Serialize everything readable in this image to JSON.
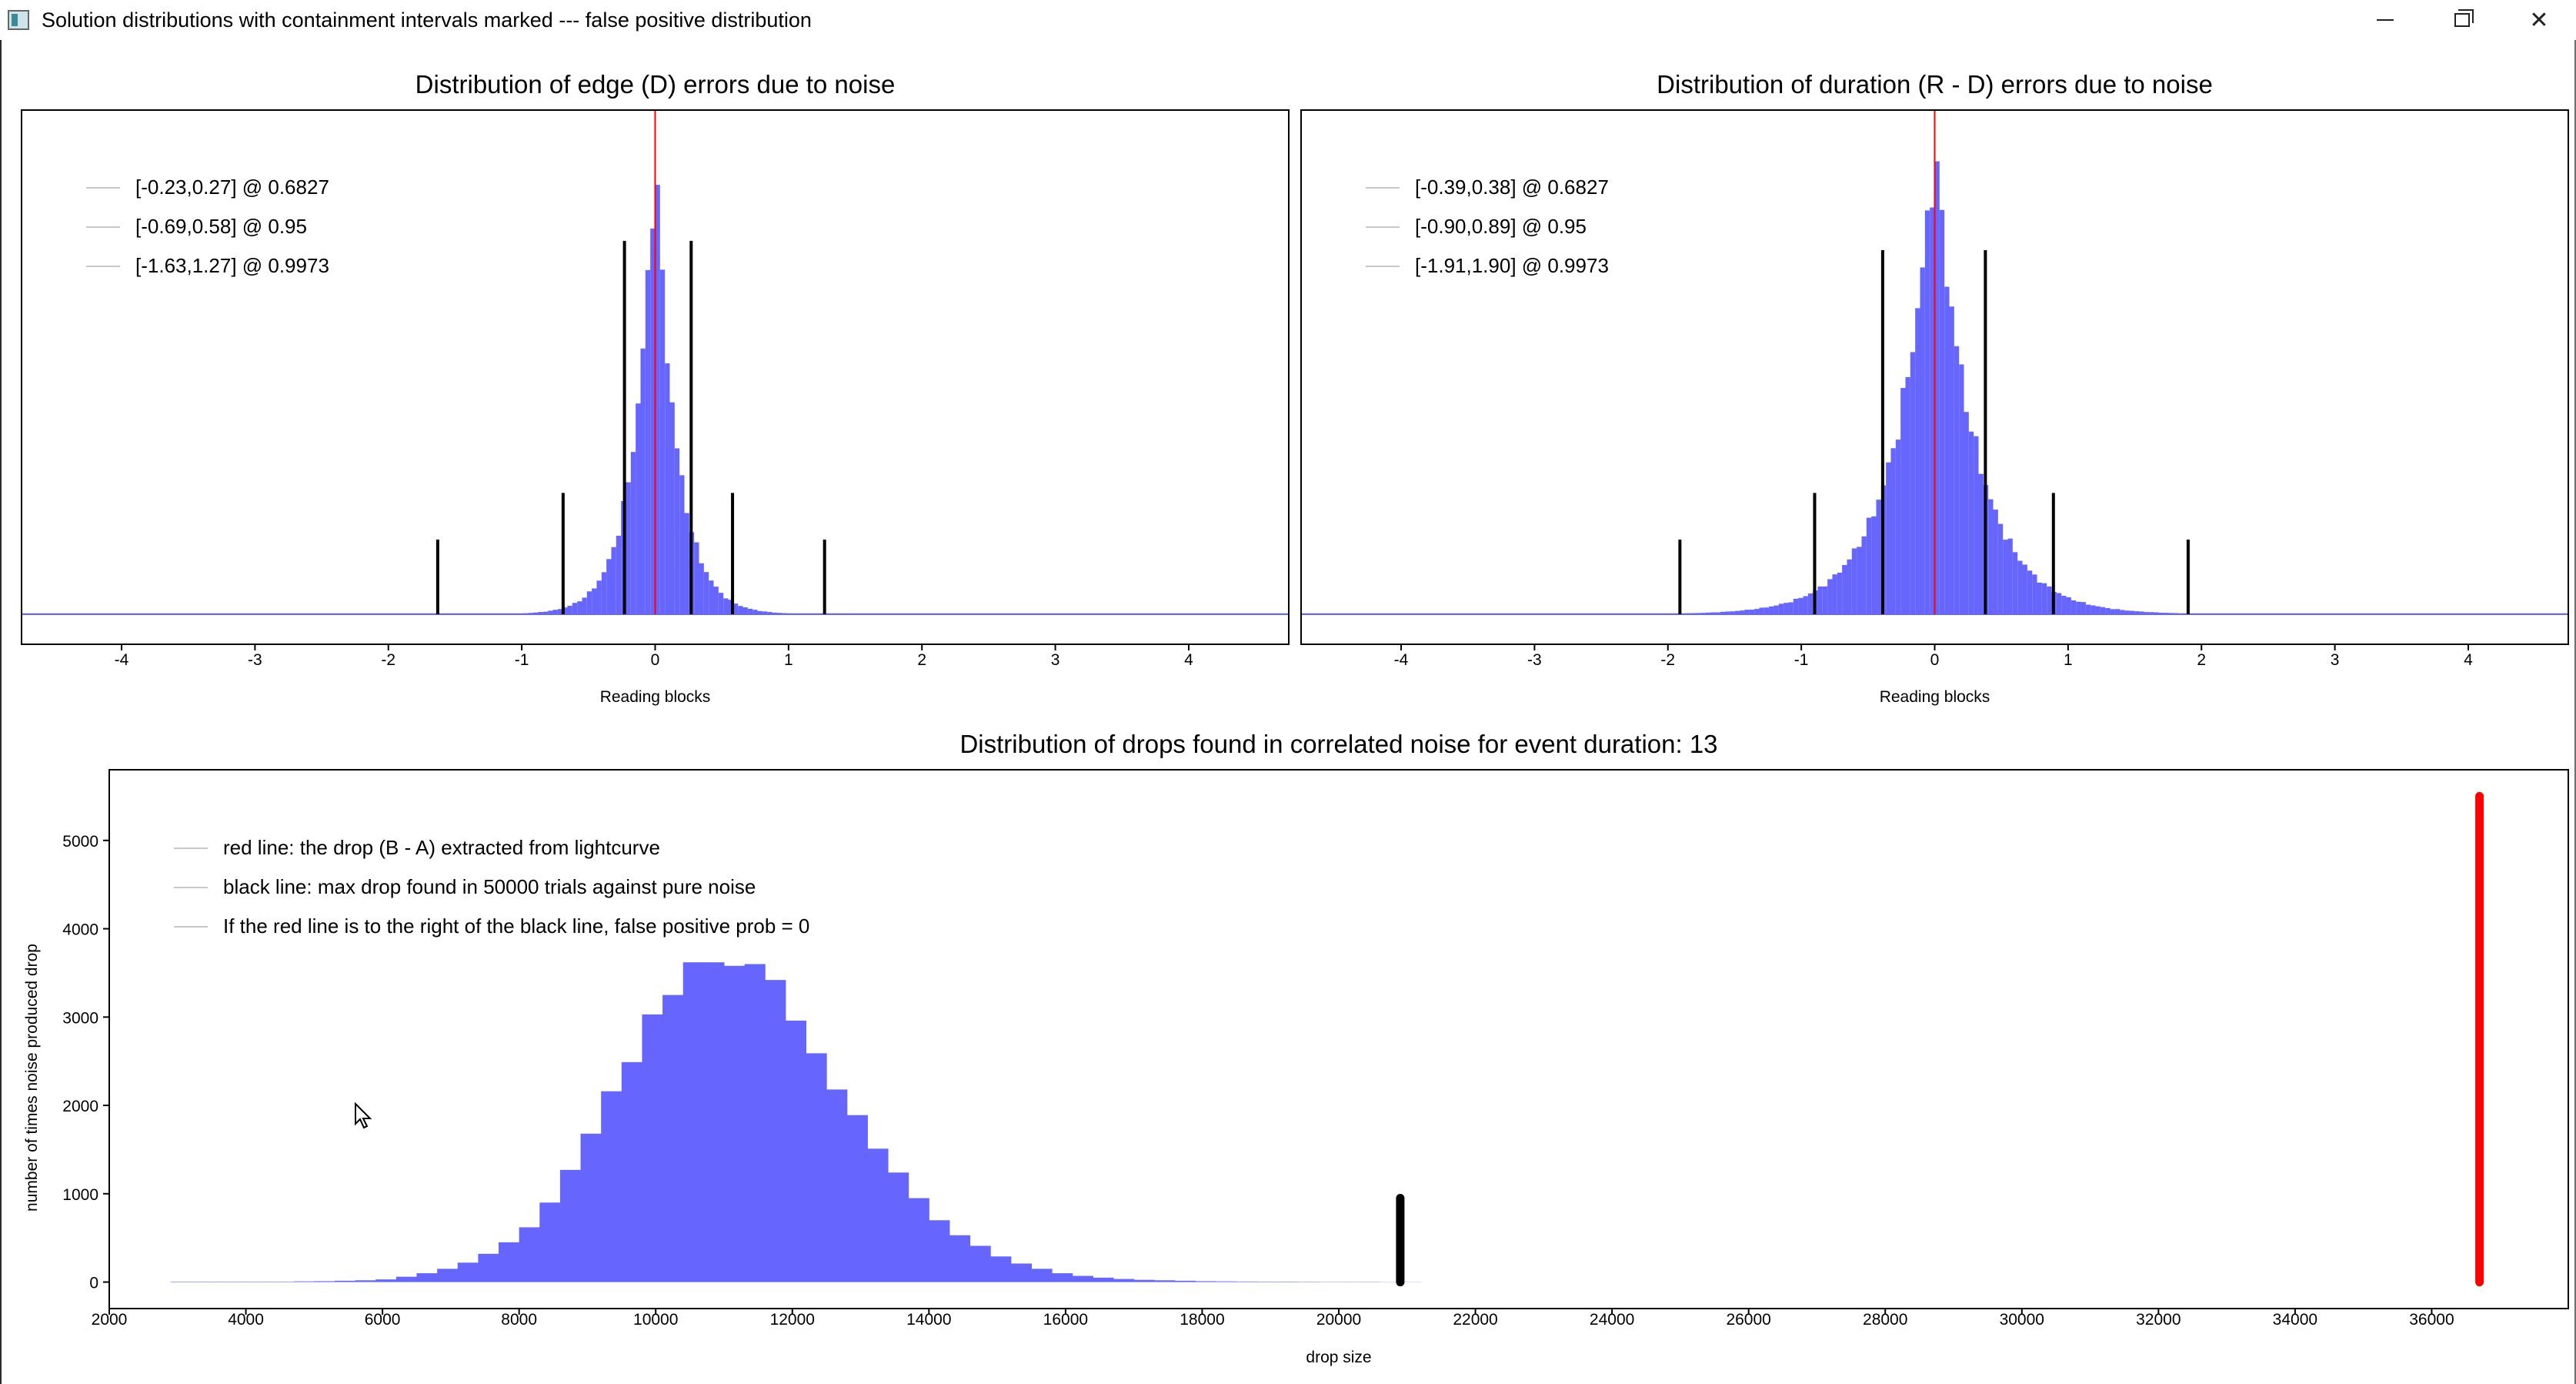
{
  "window": {
    "title": "Solution distributions with containment intervals marked --- false positive distribution",
    "controls": {
      "minimize_icon": "minimize-icon",
      "maximize_icon": "restore-icon",
      "close_icon": "close-icon",
      "close_glyph": "✕"
    }
  },
  "colors": {
    "bars": "#6666ff",
    "bars_edge": "#5a5af5",
    "red_line": "#ff0000",
    "marker": "#000000",
    "axis": "#000000",
    "legend_line": "#c8c8c8"
  },
  "chart_data": [
    {
      "id": "edge",
      "type": "bar",
      "title": "Distribution of edge (D) errors due to noise",
      "xlabel": "Reading blocks",
      "ylabel": "",
      "xlim": [
        -4.75,
        4.75
      ],
      "ylim": [
        0,
        1.08
      ],
      "xticks": [
        -4,
        -3,
        -2,
        -1,
        0,
        1,
        2,
        3,
        4
      ],
      "yticks": [],
      "distribution": {
        "kind": "peaked",
        "center": 0.0,
        "scale": 0.16,
        "peak": 1.0,
        "bins": 260,
        "range": [
          -4.75,
          4.75
        ]
      },
      "red_line": 0.0,
      "interval_markers": [
        {
          "x": -0.23,
          "height": 0.8
        },
        {
          "x": 0.27,
          "height": 0.8
        },
        {
          "x": -0.69,
          "height": 0.26
        },
        {
          "x": 0.58,
          "height": 0.26
        },
        {
          "x": -1.63,
          "height": 0.16
        },
        {
          "x": 1.27,
          "height": 0.16
        }
      ],
      "legend": [
        "[-0.23,0.27] @ 0.6827",
        "[-0.69,0.58] @ 0.95",
        "[-1.63,1.27] @ 0.9973"
      ]
    },
    {
      "id": "duration",
      "type": "bar",
      "title": "Distribution of duration (R - D) errors due to noise",
      "xlabel": "Reading blocks",
      "ylabel": "",
      "xlim": [
        -4.75,
        4.75
      ],
      "ylim": [
        0,
        1.08
      ],
      "xticks": [
        -4,
        -3,
        -2,
        -1,
        0,
        1,
        2,
        3,
        4
      ],
      "yticks": [],
      "distribution": {
        "kind": "peaked",
        "center": 0.0,
        "scale": 0.3,
        "peak": 1.0,
        "bins": 260,
        "range": [
          -4.75,
          4.75
        ]
      },
      "red_line": 0.0,
      "interval_markers": [
        {
          "x": -0.39,
          "height": 0.78
        },
        {
          "x": 0.38,
          "height": 0.78
        },
        {
          "x": -0.9,
          "height": 0.26
        },
        {
          "x": 0.89,
          "height": 0.26
        },
        {
          "x": -1.91,
          "height": 0.16
        },
        {
          "x": 1.9,
          "height": 0.16
        }
      ],
      "legend": [
        "[-0.39,0.38] @ 0.6827",
        "[-0.90,0.89] @ 0.95",
        "[-1.91,1.90] @ 0.9973"
      ]
    },
    {
      "id": "drops",
      "type": "bar",
      "title": "Distribution of drops found in correlated noise for event duration: 13",
      "xlabel": "drop size",
      "ylabel": "number of times noise produced drop",
      "xlim": [
        2000,
        38000
      ],
      "ylim": [
        -300,
        5800
      ],
      "xticks": [
        2000,
        4000,
        6000,
        8000,
        10000,
        12000,
        14000,
        16000,
        18000,
        20000,
        22000,
        24000,
        26000,
        28000,
        30000,
        32000,
        34000,
        36000
      ],
      "yticks": [
        0,
        1000,
        2000,
        3000,
        4000,
        5000
      ],
      "bin_width": 300,
      "bin_start": 2900,
      "values": [
        5,
        5,
        5,
        5,
        5,
        5,
        8,
        10,
        15,
        20,
        30,
        60,
        100,
        150,
        220,
        320,
        450,
        620,
        900,
        1270,
        1680,
        2160,
        2490,
        3030,
        3250,
        3620,
        3620,
        3580,
        3600,
        3420,
        2960,
        2590,
        2180,
        1890,
        1510,
        1240,
        950,
        700,
        530,
        410,
        290,
        210,
        150,
        100,
        70,
        50,
        35,
        25,
        20,
        15,
        10,
        8,
        6,
        5,
        5,
        4,
        3,
        3,
        3,
        2,
        2
      ],
      "black_line": {
        "x": 20900,
        "y0": 0,
        "y1": 950
      },
      "red_line": {
        "x": 36700,
        "y0": 0,
        "y1": 5500
      },
      "legend": [
        "red line: the drop (B - A) extracted from lightcurve",
        "black line: max drop found in 50000 trials against pure noise",
        "If the red line is to the right of the black line, false positive prob = 0"
      ]
    }
  ]
}
